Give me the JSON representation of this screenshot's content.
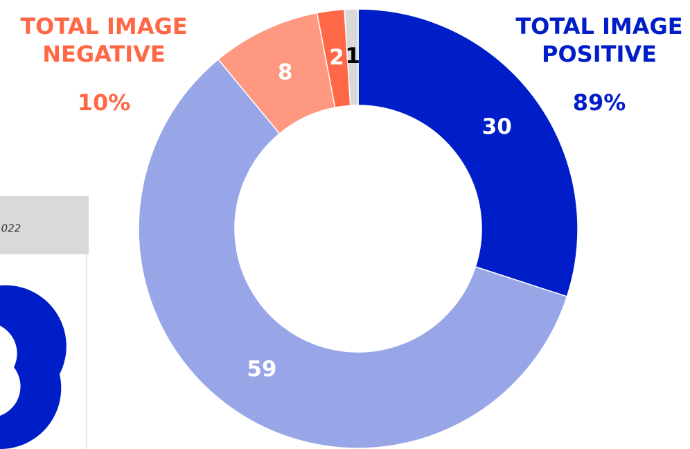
{
  "chart_data": {
    "type": "donut",
    "values": [
      30,
      59,
      8,
      2,
      1
    ],
    "colors": [
      "#001ec8",
      "#98a6e8",
      "#ff9880",
      "#ff6846",
      "#d9d9d9"
    ],
    "label_colors": [
      "#ffffff",
      "#ffffff",
      "#ffffff",
      "#ffffff",
      "#000000"
    ],
    "annotations": [
      {
        "lines": [
          "TOTAL IMAGE",
          "NEGATIVE"
        ],
        "value": "10%",
        "color": "#ff6846"
      },
      {
        "lines": [
          "TOTAL IMAGE",
          "POSITIVE"
        ],
        "value": "89%",
        "color": "#001ec8"
      }
    ],
    "side_panel_text": "022"
  }
}
